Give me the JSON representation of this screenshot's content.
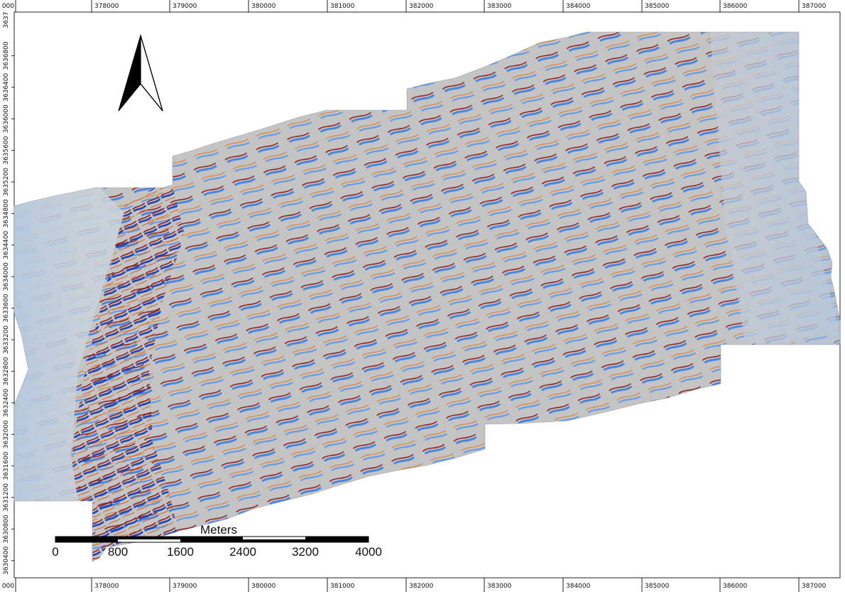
{
  "map": {
    "x_ticks": [
      "000",
      "378000",
      "379000",
      "380000",
      "381000",
      "382000",
      "383000",
      "384000",
      "385000",
      "386000",
      "387000"
    ],
    "y_ticks": [
      "3637",
      "3636800",
      "3636400",
      "3636000",
      "3635600",
      "3635200",
      "3634800",
      "3634400",
      "3634000",
      "3633600",
      "3633200",
      "3632800",
      "3632400",
      "3632000",
      "3631600",
      "3631200",
      "3630800",
      "3630400"
    ],
    "north_arrow_icon": "north-arrow-icon",
    "scale_bar": {
      "title": "Meters",
      "labels": [
        "0",
        "800",
        "1600",
        "2400",
        "3200",
        "4000"
      ]
    },
    "colors": {
      "background": "#c4c4c4",
      "cool": "#3a7fe0",
      "cool_dark": "#1b3fb0",
      "warm": "#e07a2a",
      "warm_dark": "#8a1010",
      "pale": "#aac4e4"
    }
  }
}
